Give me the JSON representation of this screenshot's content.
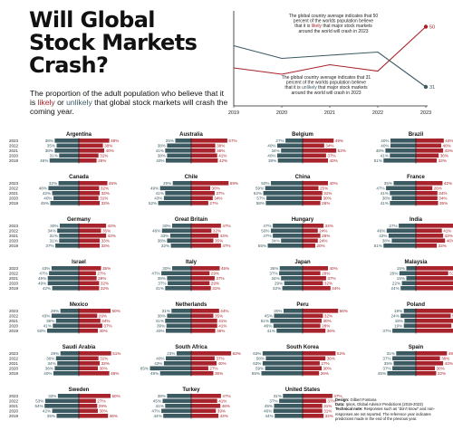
{
  "title": "Will Global\nStock Markets\nCrash?",
  "subtitle": {
    "before": "The proportion of the adult population who believe that it is ",
    "likely": "likely",
    "or": " or ",
    "unlikely": "unlikely",
    "after": " that global stock markets will crash the coming year."
  },
  "credits": {
    "design_label": "Design:",
    "design": "Gilbert Fontana",
    "data_label": "Data:",
    "data": "Ipsos, Global Advisor Predictions (2019-2023)",
    "note_label": "Technical note:",
    "note": "Responses such as \"don't know\" and non-responses are not reported. The reference year indicates predictions made in the end of the previous year."
  },
  "colors": {
    "likely": "#a8232b",
    "unlikely": "#3b5a62"
  },
  "chart_data": [
    {
      "type": "line",
      "x": [
        2019,
        2020,
        2021,
        2022,
        2023
      ],
      "xlim": [
        2019,
        2023
      ],
      "ylim": [
        25,
        55
      ],
      "grid": false,
      "series": [
        {
          "color": "#a8232b",
          "values": [
            37,
            35,
            38,
            36,
            50
          ]
        },
        {
          "color": "#3b5a62",
          "values": [
            44,
            40,
            41,
            42,
            31
          ]
        }
      ],
      "annotations": [
        "The global country average indicates that 50 percent of the worlds population believe that it is likely that major stock markets around the world will crash in 2023",
        "The global country average indicates that 31 percent of the worlds population believe that it is unlikely that major stock markets around the world will crash in 2023"
      ],
      "annotation_highlights": [
        "likely",
        "unlikely"
      ],
      "end_labels": [
        "50",
        "31"
      ]
    },
    {
      "type": "bar",
      "orientation": "diverging-horizontal",
      "years": [
        "2023",
        "2022",
        "2021",
        "2020",
        "2019"
      ],
      "panels": [
        {
          "country": "Argentina",
          "unlikely": [
            38,
            35,
            38,
            31,
            46
          ],
          "likely": [
            48,
            38,
            40,
            31,
            28
          ]
        },
        {
          "country": "Australia",
          "unlikely": [
            25,
            38,
            41,
            38,
            40
          ],
          "likely": [
            57,
            38,
            38,
            41,
            42
          ]
        },
        {
          "country": "Belgium",
          "unlikely": [
            27,
            40,
            34,
            40,
            39
          ],
          "likely": [
            49,
            34,
            53,
            37,
            40
          ]
        },
        {
          "country": "Brazil",
          "unlikely": [
            40,
            40,
            48,
            41,
            51
          ],
          "likely": [
            44,
            40,
            43,
            36,
            33
          ]
        },
        {
          "country": "Canada",
          "unlikely": [
            32,
            48,
            42,
            40,
            45
          ],
          "likely": [
            45,
            32,
            33,
            31,
            33
          ]
        },
        {
          "country": "Chile",
          "unlikely": [
            29,
            49,
            41,
            43,
            52
          ],
          "likely": [
            59,
            30,
            37,
            34,
            27
          ]
        },
        {
          "country": "China",
          "unlikely": [
            50,
            59,
            62,
            57,
            58
          ],
          "likely": [
            40,
            25,
            31,
            30,
            28
          ]
        },
        {
          "country": "France",
          "unlikely": [
            35,
            47,
            41,
            38,
            41
          ],
          "likely": [
            42,
            26,
            34,
            34,
            35
          ]
        },
        {
          "country": "Germany",
          "unlikely": [
            30,
            34,
            31,
            31,
            37
          ],
          "likely": [
            43,
            35,
            43,
            33,
            33
          ]
        },
        {
          "country": "Great Britain",
          "unlikely": [
            30,
            46,
            33,
            38,
            32
          ],
          "likely": [
            47,
            32,
            43,
            35,
            47
          ]
        },
        {
          "country": "Hungary",
          "unlikely": [
            47,
            50,
            47,
            34,
            55
          ],
          "likely": [
            33,
            24,
            28,
            24,
            20
          ]
        },
        {
          "country": "India",
          "unlikely": [
            27,
            46,
            43,
            38,
            51
          ],
          "likely": [
            59,
            41,
            43,
            46,
            33
          ]
        },
        {
          "country": "Israel",
          "unlikely": [
            43,
            47,
            49,
            49,
            42
          ],
          "likely": [
            35,
            27,
            28,
            32,
            32
          ]
        },
        {
          "country": "Italy",
          "unlikely": [
            30,
            47,
            38,
            37,
            41
          ],
          "likely": [
            45,
            29,
            37,
            29,
            31
          ]
        },
        {
          "country": "Japan",
          "unlikely": [
            36,
            37,
            34,
            29,
            32
          ],
          "likely": [
            40,
            28,
            37,
            32,
            44
          ]
        },
        {
          "country": "Malaysia",
          "unlikely": [
            15,
            26,
            15,
            22,
            24
          ],
          "likely": [
            71,
            51,
            73,
            59,
            64
          ]
        },
        {
          "country": "Mexico",
          "unlikely": [
            29,
            43,
            36,
            41,
            50
          ],
          "likely": [
            50,
            29,
            34,
            37,
            30
          ]
        },
        {
          "country": "Netherlands",
          "unlikely": [
            31,
            38,
            41,
            39,
            40
          ],
          "likely": [
            44,
            35,
            41,
            41,
            38
          ]
        },
        {
          "country": "Peru",
          "unlikely": [
            30,
            45,
            51,
            46,
            41
          ],
          "likely": [
            56,
            32,
            30,
            28,
            36
          ]
        },
        {
          "country": "Poland",
          "unlikely": [
            19,
            24,
            18,
            19,
            37
          ],
          "likely": [
            66,
            55,
            68,
            56,
            65
          ]
        },
        {
          "country": "Saudi Arabia",
          "unlikely": [
            29,
            36,
            34,
            38,
            40
          ],
          "likely": [
            51,
            31,
            33,
            30,
            48
          ]
        },
        {
          "country": "South Africa",
          "unlikely": [
            23,
            40,
            43,
            65,
            49
          ],
          "likely": [
            63,
            37,
            40,
            27,
            35
          ]
        },
        {
          "country": "South Korea",
          "unlikely": [
            63,
            58,
            63,
            59,
            65
          ],
          "likely": [
            52,
            36,
            27,
            30,
            26
          ]
        },
        {
          "country": "Spain",
          "unlikely": [
            31,
            37,
            35,
            37,
            45
          ],
          "likely": [
            49,
            38,
            43,
            30,
            32
          ]
        },
        {
          "country": "Sweden",
          "unlikely": [
            33,
            53,
            54,
            42,
            35
          ],
          "likely": [
            50,
            27,
            29,
            30,
            46
          ]
        },
        {
          "country": "Turkey",
          "unlikely": [
            38,
            45,
            41,
            47,
            44
          ],
          "likely": [
            47,
            41,
            46,
            39,
            43
          ]
        },
        {
          "country": "United States",
          "unlikely": [
            31,
            37,
            45,
            46,
            44
          ],
          "likely": [
            47,
            37,
            31,
            31,
            33
          ]
        }
      ]
    }
  ]
}
